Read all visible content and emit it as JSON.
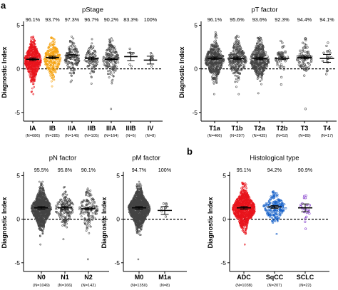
{
  "panel_letters": [
    "a",
    "b"
  ],
  "chart_data": [
    {
      "id": "pstage",
      "type": "scatter",
      "title": "pStage",
      "ylabel": "Diagnostic Index",
      "ylim": [
        -6,
        5.2
      ],
      "yticks": [
        -5,
        0,
        5
      ],
      "reference_line_y": 0,
      "categories": [
        {
          "label": "IA",
          "n": "(N=686)",
          "pct": "96.1%",
          "color": "#e8141c",
          "count": 686,
          "median": 0.95,
          "sd": 1.25,
          "min": -2.9,
          "max": 3.7,
          "summary_mean": 1.1
        },
        {
          "label": "IB",
          "n": "(N=285)",
          "pct": "93.7%",
          "color": "#f5a20f",
          "count": 285,
          "median": 1.1,
          "sd": 1.2,
          "min": -2.0,
          "max": 3.6,
          "summary_mean": 1.3
        },
        {
          "label": "IIA",
          "n": "(N=146)",
          "pct": "97.3%",
          "color": "#444444",
          "count": 146,
          "median": 1.3,
          "sd": 1.1,
          "min": -1.5,
          "max": 3.7,
          "summary_mean": 1.5
        },
        {
          "label": "IIB",
          "n": "(N=105)",
          "pct": "96.7%",
          "color": "#444444",
          "count": 105,
          "median": 1.1,
          "sd": 1.0,
          "min": -1.7,
          "max": 3.4,
          "summary_mean": 1.2
        },
        {
          "label": "IIIA",
          "n": "(N=164)",
          "pct": "90.2%",
          "color": "#444444",
          "count": 164,
          "median": 1.0,
          "sd": 1.2,
          "min": -4.6,
          "max": 3.5,
          "summary_mean": 1.1
        },
        {
          "label": "IIIB",
          "n": "(N=6)",
          "pct": "83.3%",
          "color": "#444444",
          "count": 6,
          "median": 1.4,
          "sd": 0.9,
          "min": 0.3,
          "max": 2.3,
          "summary_mean": 1.4
        },
        {
          "label": "IV",
          "n": "(N=8)",
          "pct": "100%",
          "color": "#444444",
          "count": 8,
          "median": 1.0,
          "sd": 0.6,
          "min": 0.3,
          "max": 1.8,
          "summary_mean": 1.0
        }
      ]
    },
    {
      "id": "ptfactor",
      "type": "scatter",
      "title": "pT factor",
      "ylabel": "Diagnostic Index",
      "ylim": [
        -6,
        5.2
      ],
      "yticks": [
        -5,
        0,
        5
      ],
      "reference_line_y": 0,
      "categories": [
        {
          "label": "T1a",
          "n": "(N=466)",
          "pct": "96.1%",
          "color": "#444444",
          "count": 466,
          "median": 1.0,
          "sd": 1.2,
          "min": -2.9,
          "max": 4.2,
          "summary_mean": 1.2
        },
        {
          "label": "T1b",
          "n": "(N=297)",
          "pct": "95.6%",
          "color": "#444444",
          "count": 297,
          "median": 1.0,
          "sd": 1.2,
          "min": -2.9,
          "max": 3.8,
          "summary_mean": 1.2
        },
        {
          "label": "T2a",
          "n": "(N=435)",
          "pct": "93.6%",
          "color": "#444444",
          "count": 435,
          "median": 1.0,
          "sd": 1.2,
          "min": -2.8,
          "max": 3.6,
          "summary_mean": 1.2
        },
        {
          "label": "T2b",
          "n": "(N=52)",
          "pct": "92.3%",
          "color": "#444444",
          "count": 52,
          "median": 1.1,
          "sd": 1.0,
          "min": -1.8,
          "max": 3.2,
          "summary_mean": 1.2
        },
        {
          "label": "T3",
          "n": "(N=89)",
          "pct": "94.4%",
          "color": "#444444",
          "count": 89,
          "median": 1.2,
          "sd": 1.1,
          "min": -4.6,
          "max": 3.5,
          "summary_mean": 1.3
        },
        {
          "label": "T4",
          "n": "(N=17)",
          "pct": "94.1%",
          "color": "#444444",
          "count": 17,
          "median": 1.2,
          "sd": 0.9,
          "min": -0.6,
          "max": 3.0,
          "summary_mean": 1.2
        }
      ]
    },
    {
      "id": "pnfactor",
      "type": "scatter",
      "title": "pN factor",
      "ylabel": "Diagnostic Index",
      "ylim": [
        -6,
        5.2
      ],
      "yticks": [
        -5,
        0,
        5
      ],
      "reference_line_y": 0,
      "categories": [
        {
          "label": "N0",
          "n": "(N=1049)",
          "pct": "95.5%",
          "color": "#444444",
          "count": 1049,
          "median": 1.2,
          "sd": 1.2,
          "min": -2.9,
          "max": 4.3,
          "summary_mean": 1.3
        },
        {
          "label": "N1",
          "n": "(N=166)",
          "pct": "95.8%",
          "color": "#444444",
          "count": 166,
          "median": 1.2,
          "sd": 1.0,
          "min": -2.3,
          "max": 3.7,
          "summary_mean": 1.3
        },
        {
          "label": "N2",
          "n": "(N=142)",
          "pct": "90.1%",
          "color": "#444444",
          "count": 142,
          "median": 1.1,
          "sd": 1.2,
          "min": -4.6,
          "max": 3.5,
          "summary_mean": 1.2
        }
      ]
    },
    {
      "id": "pmfactor",
      "type": "scatter",
      "title": "pM factor",
      "ylabel": "Diagnostic Index",
      "ylim": [
        -6,
        5.2
      ],
      "yticks": [
        -5,
        0,
        5
      ],
      "reference_line_y": 0,
      "categories": [
        {
          "label": "M0",
          "n": "(N=1350)",
          "pct": "94.7%",
          "color": "#444444",
          "count": 1350,
          "median": 1.2,
          "sd": 1.2,
          "min": -4.6,
          "max": 4.3,
          "summary_mean": 1.3
        },
        {
          "label": "M1a",
          "n": "(N=8)",
          "pct": "100%",
          "color": "#444444",
          "count": 8,
          "median": 1.0,
          "sd": 0.6,
          "min": 0.3,
          "max": 1.8,
          "summary_mean": 1.0
        }
      ]
    },
    {
      "id": "histology",
      "type": "scatter",
      "title": "Histological type",
      "ylabel": "Diagnostic Index",
      "ylim": [
        -6,
        5.2
      ],
      "yticks": [
        -5,
        0,
        5
      ],
      "reference_line_y": 0,
      "categories": [
        {
          "label": "ADC",
          "n": "(N=1038)",
          "pct": "95.1%",
          "color": "#e8141c",
          "count": 1038,
          "median": 1.2,
          "sd": 1.2,
          "min": -2.9,
          "max": 4.2,
          "summary_mean": 1.3
        },
        {
          "label": "SqCC",
          "n": "(N=207)",
          "pct": "94.2%",
          "color": "#1560c8",
          "count": 207,
          "median": 1.3,
          "sd": 0.9,
          "min": -1.7,
          "max": 3.2,
          "summary_mean": 1.4
        },
        {
          "label": "SCLC",
          "n": "(N=22)",
          "pct": "90.9%",
          "color": "#7a2ec8",
          "count": 22,
          "median": 1.2,
          "sd": 0.9,
          "min": -1.1,
          "max": 2.7,
          "summary_mean": 1.3
        }
      ]
    }
  ]
}
